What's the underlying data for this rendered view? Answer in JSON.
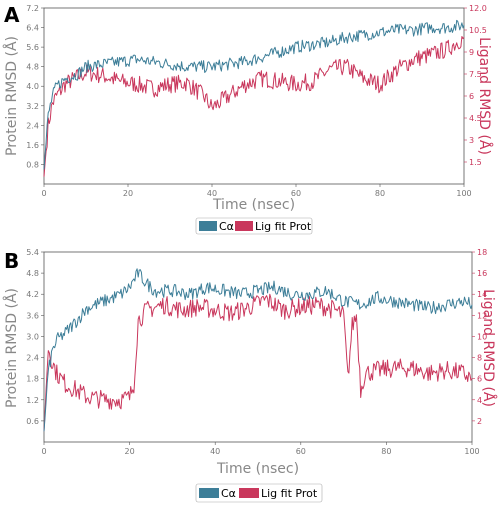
{
  "chart_data": [
    {
      "type": "line",
      "panel_label": "A",
      "xlabel": "Time (nsec)",
      "ylabel_left": "Protein RMSD (Å)",
      "ylabel_right": "Ligand RMSD (Å)",
      "xlim": [
        0,
        100
      ],
      "ylim_left": [
        0,
        7.2
      ],
      "ylim_right": [
        0,
        12.0
      ],
      "xticks": [
        "0",
        "20",
        "40",
        "60",
        "80",
        "100"
      ],
      "yticks_left": [
        "0.8",
        "1.6",
        "2.4",
        "3.2",
        "4.0",
        "4.8",
        "5.6",
        "6.4",
        "7.2"
      ],
      "yticks_right": [
        "1.5",
        "3",
        "4.5",
        "6",
        "7.5",
        "9",
        "10.5",
        "12.0"
      ],
      "legend": [
        "Cα",
        "Lig fit Prot"
      ],
      "legend_placement": "bottom-center",
      "grid": false,
      "colors": {
        "protein": "#3d7e98",
        "ligand": "#c9375c"
      },
      "series": [
        {
          "name": "Cα",
          "axis": "left",
          "x": [
            0,
            1,
            2,
            3,
            5,
            8,
            10,
            14,
            18,
            22,
            26,
            30,
            34,
            38,
            40,
            44,
            48,
            52,
            56,
            60,
            64,
            68,
            72,
            76,
            80,
            84,
            88,
            92,
            96,
            100
          ],
          "y": [
            0.6,
            2.8,
            3.6,
            4.0,
            4.3,
            4.5,
            4.8,
            4.9,
            5.0,
            5.1,
            5.0,
            4.9,
            4.8,
            4.8,
            4.8,
            4.9,
            5.0,
            5.2,
            5.4,
            5.6,
            5.7,
            5.8,
            6.0,
            6.1,
            6.2,
            6.3,
            6.3,
            6.4,
            6.4,
            6.5
          ]
        },
        {
          "name": "Lig fit Prot",
          "axis": "right",
          "x": [
            0,
            1,
            2,
            3,
            5,
            8,
            10,
            14,
            18,
            22,
            26,
            30,
            34,
            38,
            40,
            44,
            48,
            52,
            56,
            60,
            64,
            68,
            72,
            76,
            80,
            84,
            88,
            92,
            96,
            100
          ],
          "y": [
            0.5,
            4.0,
            5.5,
            6.0,
            6.8,
            7.3,
            7.6,
            7.4,
            7.0,
            6.8,
            6.5,
            6.8,
            6.9,
            6.0,
            5.2,
            6.0,
            6.8,
            7.2,
            7.0,
            6.8,
            7.0,
            7.8,
            8.0,
            7.2,
            6.8,
            7.8,
            8.5,
            8.8,
            9.2,
            10.0
          ]
        }
      ]
    },
    {
      "type": "line",
      "panel_label": "B",
      "xlabel": "Time (nsec)",
      "ylabel_left": "Protein RMSD (Å)",
      "ylabel_right": "Ligand RMSD (Å)",
      "xlim": [
        0,
        100
      ],
      "ylim_left": [
        0,
        5.4
      ],
      "ylim_right": [
        0,
        18
      ],
      "xticks": [
        "0",
        "20",
        "40",
        "60",
        "80",
        "100"
      ],
      "yticks_left": [
        "0.6",
        "1.2",
        "1.8",
        "2.4",
        "3.0",
        "3.6",
        "4.2",
        "4.8",
        "5.4"
      ],
      "yticks_right": [
        "2",
        "4",
        "6",
        "8",
        "10",
        "12",
        "14",
        "16",
        "18"
      ],
      "legend": [
        "Cα",
        "Lig fit Prot"
      ],
      "legend_placement": "bottom-center",
      "grid": false,
      "colors": {
        "protein": "#3d7e98",
        "ligand": "#c9375c"
      },
      "series": [
        {
          "name": "Cα",
          "axis": "left",
          "x": [
            0,
            1,
            2,
            3,
            5,
            8,
            10,
            14,
            18,
            20,
            22,
            24,
            26,
            30,
            34,
            38,
            42,
            46,
            50,
            54,
            58,
            62,
            66,
            70,
            74,
            78,
            82,
            86,
            90,
            94,
            98,
            100
          ],
          "y": [
            0.3,
            2.0,
            2.6,
            2.9,
            3.1,
            3.5,
            3.8,
            4.0,
            4.2,
            4.4,
            4.8,
            4.5,
            4.3,
            4.3,
            4.2,
            4.4,
            4.3,
            4.2,
            4.3,
            4.4,
            4.2,
            4.2,
            4.3,
            4.0,
            3.9,
            4.1,
            4.0,
            3.9,
            3.8,
            3.9,
            4.0,
            3.9
          ]
        },
        {
          "name": "Lig fit Prot",
          "axis": "right",
          "x": [
            0,
            1,
            2,
            3,
            5,
            8,
            10,
            14,
            18,
            20,
            21,
            22,
            24,
            28,
            32,
            36,
            40,
            44,
            48,
            52,
            56,
            60,
            64,
            68,
            70,
            71,
            72,
            73,
            74,
            75,
            78,
            82,
            86,
            90,
            94,
            98,
            100
          ],
          "y": [
            1.0,
            9.0,
            7.5,
            6.5,
            5.5,
            4.8,
            4.3,
            4.0,
            4.0,
            4.2,
            5.5,
            11.5,
            12.5,
            13.0,
            12.5,
            12.8,
            12.5,
            12.2,
            12.8,
            13.5,
            12.5,
            12.8,
            13.0,
            12.5,
            12.0,
            6.0,
            11.0,
            12.0,
            5.0,
            6.5,
            6.8,
            7.0,
            7.0,
            6.5,
            6.8,
            6.5,
            6.0
          ]
        }
      ]
    }
  ]
}
